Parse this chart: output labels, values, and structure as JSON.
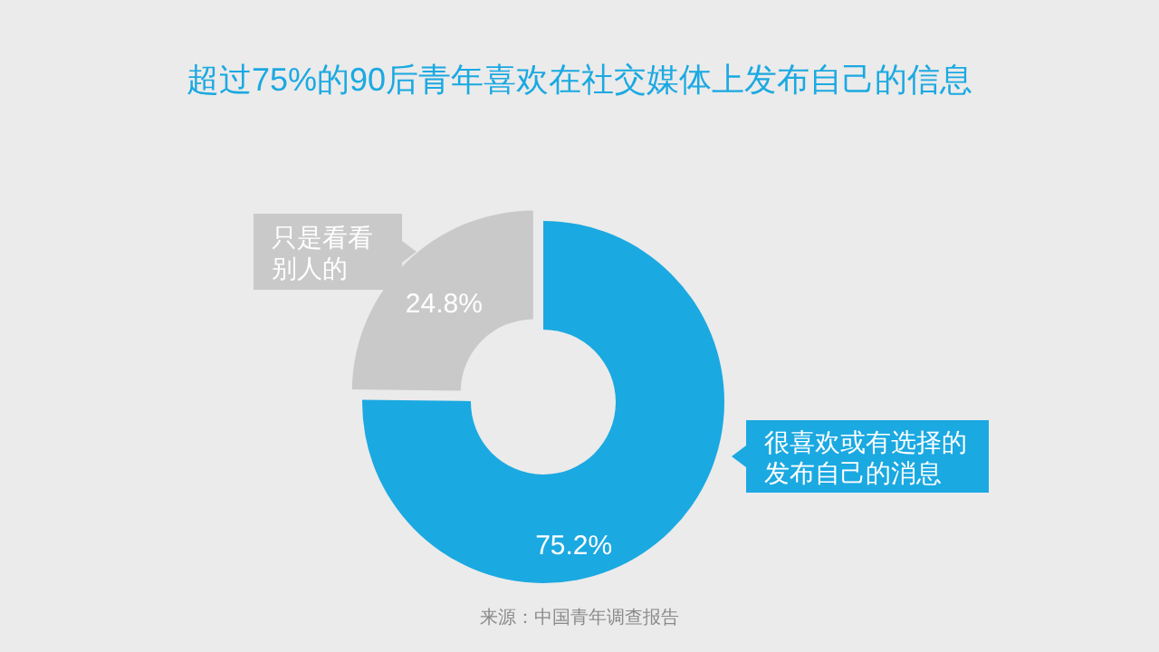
{
  "chart_data": {
    "type": "donut",
    "title": "超过75%的90后青年喜欢在社交媒体上发布自己的信息",
    "categories": [
      "很喜欢或有选择的发布自己的消息",
      "只是看看别人的"
    ],
    "values": [
      75.2,
      24.8
    ],
    "colors": [
      "#1ba9e1",
      "#c9c9c9"
    ],
    "value_labels": [
      "75.2%",
      "24.8%"
    ],
    "annotations": [
      "来源：中国青年调查报告"
    ]
  }
}
